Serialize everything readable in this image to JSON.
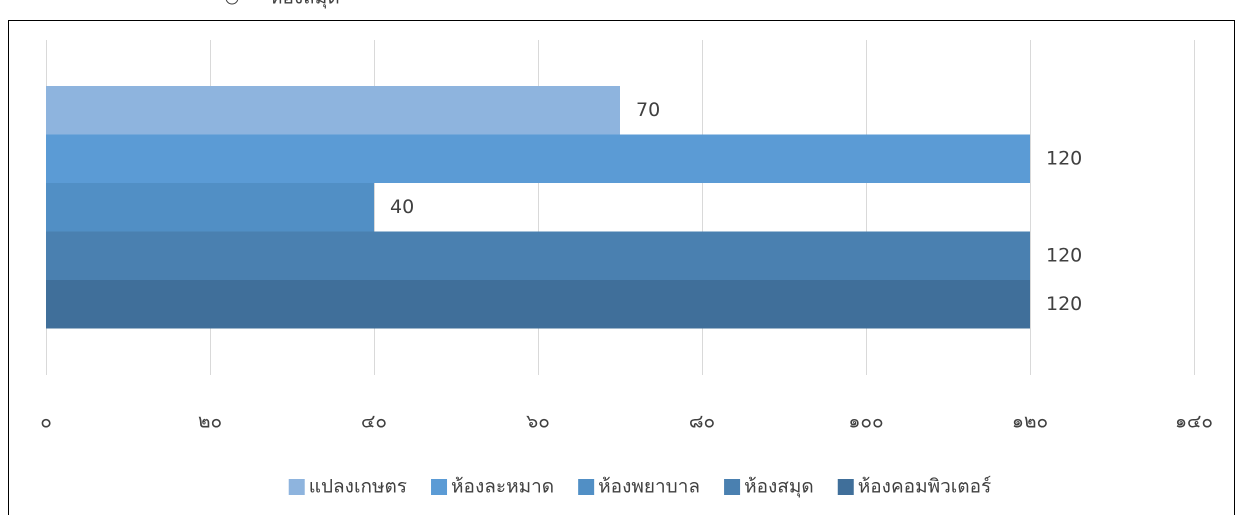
{
  "top_fragment": "ห้องสมุด",
  "chart_data": {
    "type": "bar",
    "orientation": "horizontal",
    "categories": [
      null
    ],
    "series": [
      {
        "name": "แปลงเกษตร",
        "color": "#8eb4de",
        "values": [
          70
        ]
      },
      {
        "name": "ห้องละหมาด",
        "color": "#5b9bd5",
        "values": [
          120
        ]
      },
      {
        "name": "ห้องพยาบาล",
        "color": "#518fc5",
        "values": [
          40
        ]
      },
      {
        "name": "ห้องสมุด",
        "color": "#4a80b0",
        "values": [
          120
        ]
      },
      {
        "name": "ห้องคอมพิวเตอร์",
        "color": "#406f9a",
        "values": [
          120
        ]
      }
    ],
    "xlim": [
      0,
      140
    ],
    "xticks": [
      {
        "value": 0,
        "label": "๐"
      },
      {
        "value": 20,
        "label": "๒๐"
      },
      {
        "value": 40,
        "label": "๔๐"
      },
      {
        "value": 60,
        "label": "๖๐"
      },
      {
        "value": 80,
        "label": "๘๐"
      },
      {
        "value": 100,
        "label": "๑๐๐"
      },
      {
        "value": 120,
        "label": "๑๒๐"
      },
      {
        "value": 140,
        "label": "๑๔๐"
      }
    ],
    "grid": true,
    "legend": "bottom"
  }
}
